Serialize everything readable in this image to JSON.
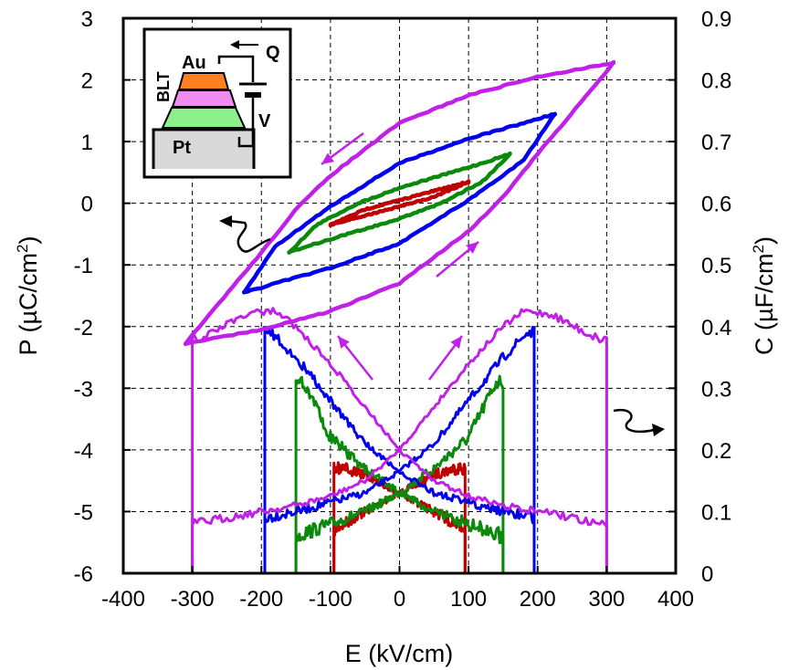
{
  "chart_data": {
    "type": "line",
    "title": "",
    "xlabel": "E (kV/cm)",
    "ylabel_left_parts": [
      "P (",
      "µ",
      "C/cm",
      "2",
      ")"
    ],
    "ylabel_right_parts": [
      "C (",
      "µ",
      "F/cm",
      "2",
      ")"
    ],
    "xlim": [
      -400,
      400
    ],
    "ylim_left": [
      -6,
      3
    ],
    "ylim_right": [
      0,
      0.9
    ],
    "xticks": [
      "-400",
      "-300",
      "-200",
      "-100",
      "0",
      "100",
      "200",
      "300",
      "400"
    ],
    "yticks_left": [
      "-6",
      "-5",
      "-4",
      "-3",
      "-2",
      "-1",
      "0",
      "1",
      "2",
      "3"
    ],
    "yticks_right": [
      "0",
      "0.1",
      "0.2",
      "0.3",
      "0.4",
      "0.5",
      "0.6",
      "0.7",
      "0.8",
      "0.9"
    ],
    "grid": true,
    "colors": {
      "red": "#c00000",
      "green": "#0a8a0a",
      "blue": "#0000ee",
      "magenta": "#c020e8"
    },
    "hysteresis_loops": [
      {
        "color": "red",
        "Emax": 100,
        "Pmax": 0.35,
        "upper": [
          [
            -100,
            -0.35
          ],
          [
            -50,
            -0.1
          ],
          [
            0,
            0.05
          ],
          [
            50,
            0.2
          ],
          [
            100,
            0.35
          ]
        ],
        "lower": [
          [
            -100,
            -0.35
          ],
          [
            -50,
            -0.2
          ],
          [
            0,
            -0.05
          ],
          [
            50,
            0.1
          ],
          [
            100,
            0.35
          ]
        ]
      },
      {
        "color": "green",
        "Emax": 160,
        "Pmax": 0.8,
        "upper": [
          [
            -160,
            -0.8
          ],
          [
            -120,
            -0.35
          ],
          [
            -60,
            0.0
          ],
          [
            0,
            0.25
          ],
          [
            60,
            0.45
          ],
          [
            120,
            0.65
          ],
          [
            160,
            0.8
          ]
        ],
        "lower": [
          [
            -160,
            -0.8
          ],
          [
            -120,
            -0.65
          ],
          [
            -60,
            -0.45
          ],
          [
            0,
            -0.25
          ],
          [
            60,
            0.0
          ],
          [
            120,
            0.35
          ],
          [
            160,
            0.8
          ]
        ]
      },
      {
        "color": "blue",
        "Emax": 225,
        "Pmax": 1.45,
        "upper": [
          [
            -225,
            -1.45
          ],
          [
            -180,
            -0.7
          ],
          [
            -100,
            -0.05
          ],
          [
            0,
            0.65
          ],
          [
            100,
            1.05
          ],
          [
            180,
            1.3
          ],
          [
            225,
            1.45
          ]
        ],
        "lower": [
          [
            -225,
            -1.45
          ],
          [
            -180,
            -1.3
          ],
          [
            -100,
            -1.05
          ],
          [
            0,
            -0.65
          ],
          [
            100,
            0.05
          ],
          [
            180,
            0.7
          ],
          [
            225,
            1.45
          ]
        ]
      },
      {
        "color": "magenta",
        "Emax": 310,
        "Pmax": 2.28,
        "upper": [
          [
            -310,
            -2.28
          ],
          [
            -260,
            -1.6
          ],
          [
            -200,
            -0.8
          ],
          [
            -150,
            -0.1
          ],
          [
            -100,
            0.45
          ],
          [
            0,
            1.3
          ],
          [
            100,
            1.75
          ],
          [
            200,
            2.05
          ],
          [
            310,
            2.28
          ]
        ],
        "lower": [
          [
            -310,
            -2.28
          ],
          [
            -200,
            -2.05
          ],
          [
            -100,
            -1.75
          ],
          [
            0,
            -1.3
          ],
          [
            100,
            -0.45
          ],
          [
            150,
            0.1
          ],
          [
            200,
            0.8
          ],
          [
            260,
            1.6
          ],
          [
            310,
            2.28
          ]
        ]
      }
    ],
    "cv_curves": [
      {
        "color": "red",
        "Emax": 95,
        "points_up": [
          [
            -95,
            0.07
          ],
          [
            -50,
            0.1
          ],
          [
            0,
            0.13
          ],
          [
            50,
            0.16
          ],
          [
            80,
            0.17
          ],
          [
            95,
            0.17
          ]
        ],
        "points_down": [
          [
            95,
            0.07
          ],
          [
            50,
            0.1
          ],
          [
            0,
            0.13
          ],
          [
            -50,
            0.16
          ],
          [
            -80,
            0.17
          ],
          [
            -95,
            0.17
          ]
        ]
      },
      {
        "color": "green",
        "Emax": 150,
        "points_up": [
          [
            -150,
            0.06
          ],
          [
            -100,
            0.08
          ],
          [
            -50,
            0.1
          ],
          [
            0,
            0.13
          ],
          [
            50,
            0.17
          ],
          [
            100,
            0.22
          ],
          [
            140,
            0.31
          ],
          [
            150,
            0.31
          ]
        ],
        "points_down": [
          [
            150,
            0.06
          ],
          [
            100,
            0.08
          ],
          [
            50,
            0.1
          ],
          [
            0,
            0.13
          ],
          [
            -50,
            0.17
          ],
          [
            -100,
            0.22
          ],
          [
            -140,
            0.31
          ],
          [
            -150,
            0.31
          ]
        ]
      },
      {
        "color": "blue",
        "Emax": 195,
        "points_up": [
          [
            -195,
            0.09
          ],
          [
            -150,
            0.1
          ],
          [
            -100,
            0.115
          ],
          [
            -50,
            0.13
          ],
          [
            0,
            0.165
          ],
          [
            50,
            0.21
          ],
          [
            100,
            0.28
          ],
          [
            150,
            0.35
          ],
          [
            185,
            0.39
          ],
          [
            195,
            0.39
          ]
        ],
        "points_down": [
          [
            195,
            0.09
          ],
          [
            150,
            0.1
          ],
          [
            100,
            0.115
          ],
          [
            50,
            0.13
          ],
          [
            0,
            0.165
          ],
          [
            -50,
            0.21
          ],
          [
            -100,
            0.28
          ],
          [
            -150,
            0.35
          ],
          [
            -185,
            0.39
          ],
          [
            -195,
            0.39
          ]
        ]
      },
      {
        "color": "magenta",
        "Emax": 300,
        "points_up": [
          [
            -300,
            0.08
          ],
          [
            -250,
            0.09
          ],
          [
            -200,
            0.1
          ],
          [
            -150,
            0.11
          ],
          [
            -100,
            0.125
          ],
          [
            -50,
            0.15
          ],
          [
            0,
            0.2
          ],
          [
            50,
            0.27
          ],
          [
            100,
            0.34
          ],
          [
            150,
            0.4
          ],
          [
            180,
            0.425
          ],
          [
            220,
            0.42
          ],
          [
            270,
            0.39
          ],
          [
            290,
            0.38
          ],
          [
            300,
            0.38
          ]
        ],
        "points_down": [
          [
            300,
            0.08
          ],
          [
            250,
            0.09
          ],
          [
            200,
            0.1
          ],
          [
            150,
            0.11
          ],
          [
            100,
            0.125
          ],
          [
            50,
            0.15
          ],
          [
            0,
            0.2
          ],
          [
            -50,
            0.27
          ],
          [
            -100,
            0.34
          ],
          [
            -150,
            0.4
          ],
          [
            -180,
            0.425
          ],
          [
            -220,
            0.42
          ],
          [
            -270,
            0.39
          ],
          [
            -290,
            0.38
          ],
          [
            -300,
            0.38
          ]
        ]
      }
    ],
    "inset": {
      "labels": {
        "au": "Au",
        "blt": "BLT",
        "pt": "Pt",
        "q": "Q",
        "v": "V"
      }
    }
  }
}
